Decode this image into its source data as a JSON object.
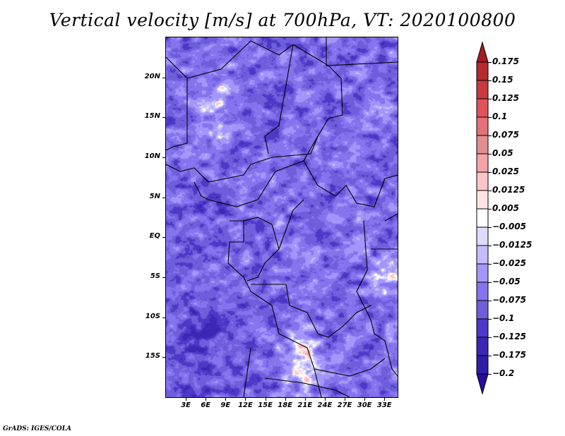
{
  "title": "Vertical velocity [m/s] at 700hPa, VT: 2020100800",
  "footer": "GrADS: IGES/COLA",
  "map": {
    "variable": "Vertical velocity",
    "units": "m/s",
    "level": "700hPa",
    "valid_time": "2020100800",
    "lon_range": [
      0,
      35
    ],
    "lat_range": [
      -20,
      25
    ],
    "y_ticks": [
      {
        "label": "20N",
        "lat": 20
      },
      {
        "label": "15N",
        "lat": 15
      },
      {
        "label": "10N",
        "lat": 10
      },
      {
        "label": "5N",
        "lat": 5
      },
      {
        "label": "EQ",
        "lat": 0
      },
      {
        "label": "5S",
        "lat": -5
      },
      {
        "label": "10S",
        "lat": -10
      },
      {
        "label": "15S",
        "lat": -15
      }
    ],
    "x_ticks": [
      {
        "label": "3E",
        "lon": 3
      },
      {
        "label": "6E",
        "lon": 6
      },
      {
        "label": "9E",
        "lon": 9
      },
      {
        "label": "12E",
        "lon": 12
      },
      {
        "label": "15E",
        "lon": 15
      },
      {
        "label": "18E",
        "lon": 18
      },
      {
        "label": "21E",
        "lon": 21
      },
      {
        "label": "24E",
        "lon": 24
      },
      {
        "label": "27E",
        "lon": 27
      },
      {
        "label": "30E",
        "lon": 30
      },
      {
        "label": "33E",
        "lon": 33
      }
    ]
  },
  "colorbar": {
    "labels": [
      "0.175",
      "0.15",
      "0.125",
      "0.1",
      "0.075",
      "0.05",
      "0.025",
      "0.0125",
      "0.005",
      "−0.005",
      "−0.0125",
      "−0.025",
      "−0.05",
      "−0.075",
      "−0.1",
      "−0.125",
      "−0.175",
      "−0.2"
    ],
    "colors_top_to_bottom": [
      "#a51c21",
      "#b52a2e",
      "#c93b3f",
      "#e05358",
      "#e47176",
      "#e18e91",
      "#f4a4a7",
      "#fbc5c6",
      "#fde4e4",
      "#ffffff",
      "#dcdcfc",
      "#c4bcfc",
      "#a296fa",
      "#8574ee",
      "#6f5edb",
      "#4d39c8",
      "#3b27b4",
      "#2d1fa6",
      "#2a0aa0"
    ]
  }
}
